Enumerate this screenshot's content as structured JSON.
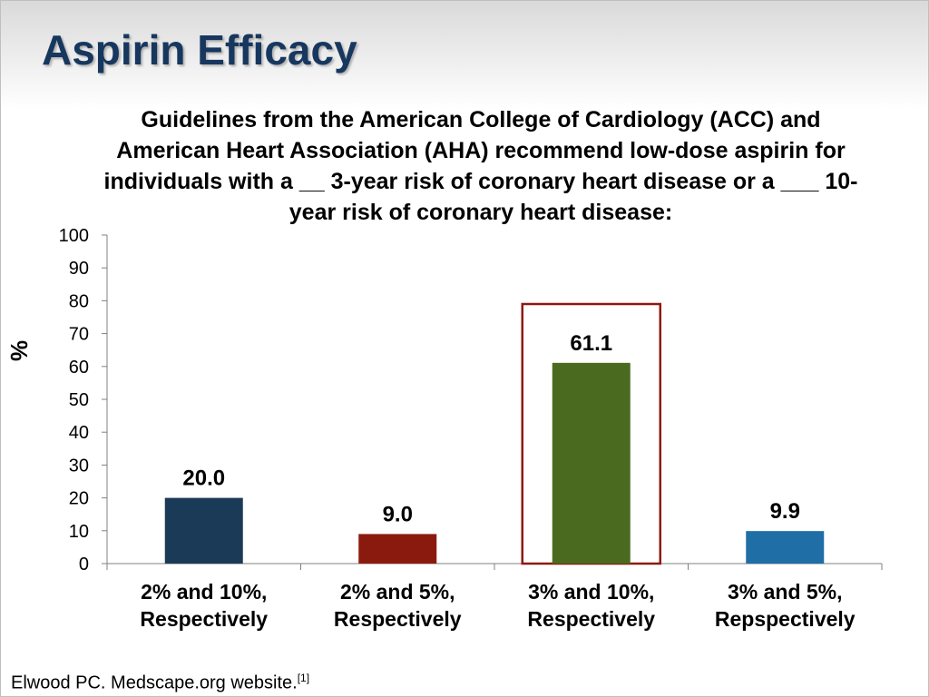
{
  "slide": {
    "title": "Aspirin Efficacy",
    "question": "Guidelines from the American College of Cardiology (ACC) and American Heart Association (AHA) recommend low-dose aspirin for individuals with a __ 3-year risk of coronary heart disease or a ___ 10-year risk of coronary heart disease:",
    "source_text": "Elwood PC. Medscape.org website.",
    "source_ref": "[1]"
  },
  "chart_data": {
    "type": "bar",
    "categories": [
      [
        "2% and 10%,",
        "Respectively"
      ],
      [
        "2% and 5%,",
        "Respectively"
      ],
      [
        "3% and 10%,",
        "Respectively"
      ],
      [
        "3% and 5%,",
        "Repspectively"
      ]
    ],
    "values": [
      20.0,
      9.0,
      61.1,
      9.9
    ],
    "value_labels": [
      "20.0",
      "9.0",
      "61.1",
      "9.9"
    ],
    "colors": [
      "#1a3a57",
      "#8b1a0e",
      "#4a6b1f",
      "#1f6ea6"
    ],
    "highlight_index": 2,
    "highlight_color": "#8b1a0e",
    "ylabel": "%",
    "ylim": [
      0,
      100
    ],
    "yticks": [
      0,
      10,
      20,
      30,
      40,
      50,
      60,
      70,
      80,
      90,
      100
    ],
    "grid": false
  }
}
